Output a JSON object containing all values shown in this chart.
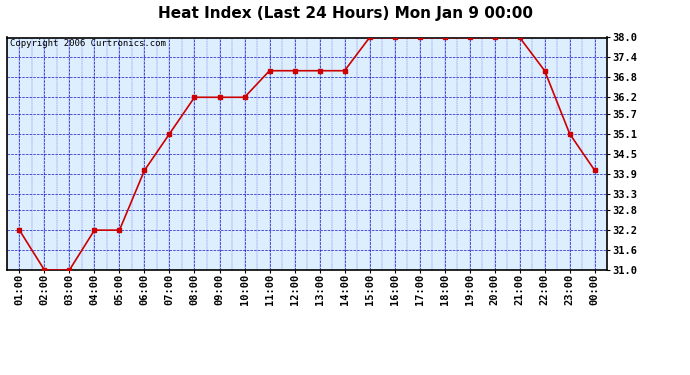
{
  "title": "Heat Index (Last 24 Hours) Mon Jan 9 00:00",
  "copyright": "Copyright 2006 Curtronics.com",
  "x_labels": [
    "01:00",
    "02:00",
    "03:00",
    "04:00",
    "05:00",
    "06:00",
    "07:00",
    "08:00",
    "09:00",
    "10:00",
    "11:00",
    "12:00",
    "13:00",
    "14:00",
    "15:00",
    "16:00",
    "17:00",
    "18:00",
    "19:00",
    "20:00",
    "21:00",
    "22:00",
    "23:00",
    "00:00"
  ],
  "y_values": [
    32.2,
    31.0,
    31.0,
    32.2,
    32.2,
    34.0,
    35.1,
    36.2,
    36.2,
    36.2,
    37.0,
    37.0,
    37.0,
    37.0,
    38.0,
    38.0,
    38.0,
    38.0,
    38.0,
    38.0,
    38.0,
    37.0,
    35.1,
    34.0
  ],
  "ylim_min": 31.0,
  "ylim_max": 38.0,
  "y_ticks": [
    31.0,
    31.6,
    32.2,
    32.8,
    33.3,
    33.9,
    34.5,
    35.1,
    35.7,
    36.2,
    36.8,
    37.4,
    38.0
  ],
  "line_color": "#cc0000",
  "marker_color": "#cc0000",
  "bg_color": "#ffffff",
  "plot_bg_color": "#ddeeff",
  "grid_color": "#0000bb",
  "border_color": "#000000",
  "title_fontsize": 11,
  "copyright_fontsize": 6.5,
  "tick_fontsize": 7.5
}
